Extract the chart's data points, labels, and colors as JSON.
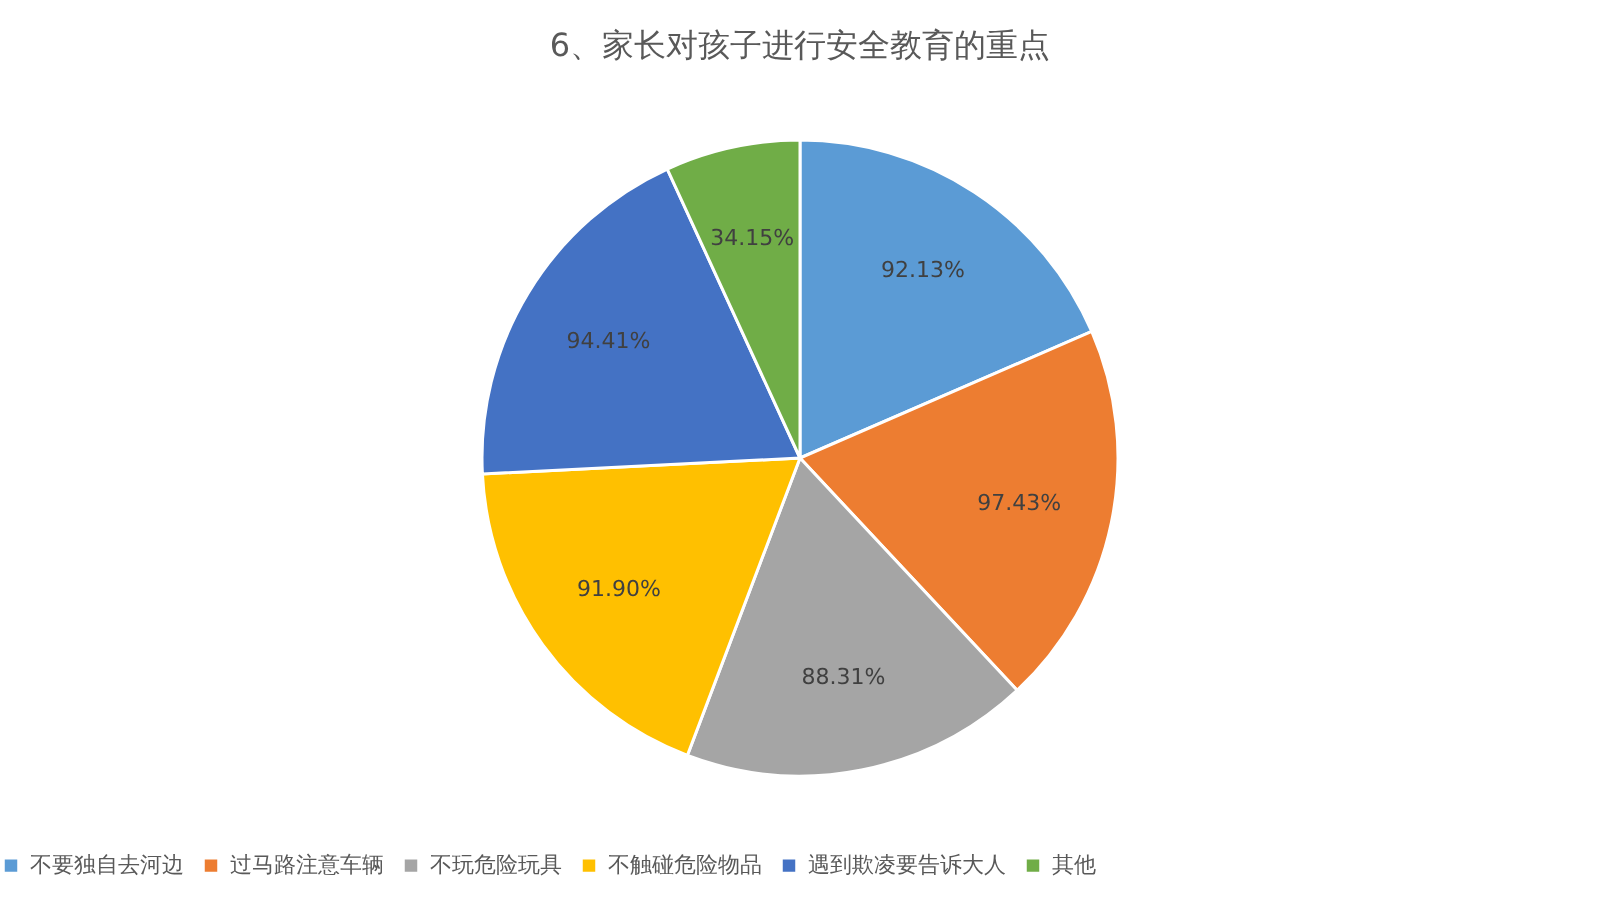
{
  "chart_data": {
    "type": "pie",
    "title": "6、家长对孩子进行安全教育的重点",
    "categories": [
      "不要独自去河边",
      "过马路注意车辆",
      "不玩危险玩具",
      "不触碰危险物品",
      "遇到欺凌要告诉大人",
      "其他"
    ],
    "values": [
      92.13,
      97.43,
      88.31,
      91.9,
      94.41,
      34.15
    ],
    "value_labels": [
      "92.13%",
      "97.43%",
      "88.31%",
      "91.90%",
      "94.41%",
      "34.15%"
    ],
    "colors": [
      "#5b9bd5",
      "#ed7d31",
      "#a5a5a5",
      "#ffc000",
      "#4472c4",
      "#70ad47"
    ],
    "legend": "bottom"
  }
}
